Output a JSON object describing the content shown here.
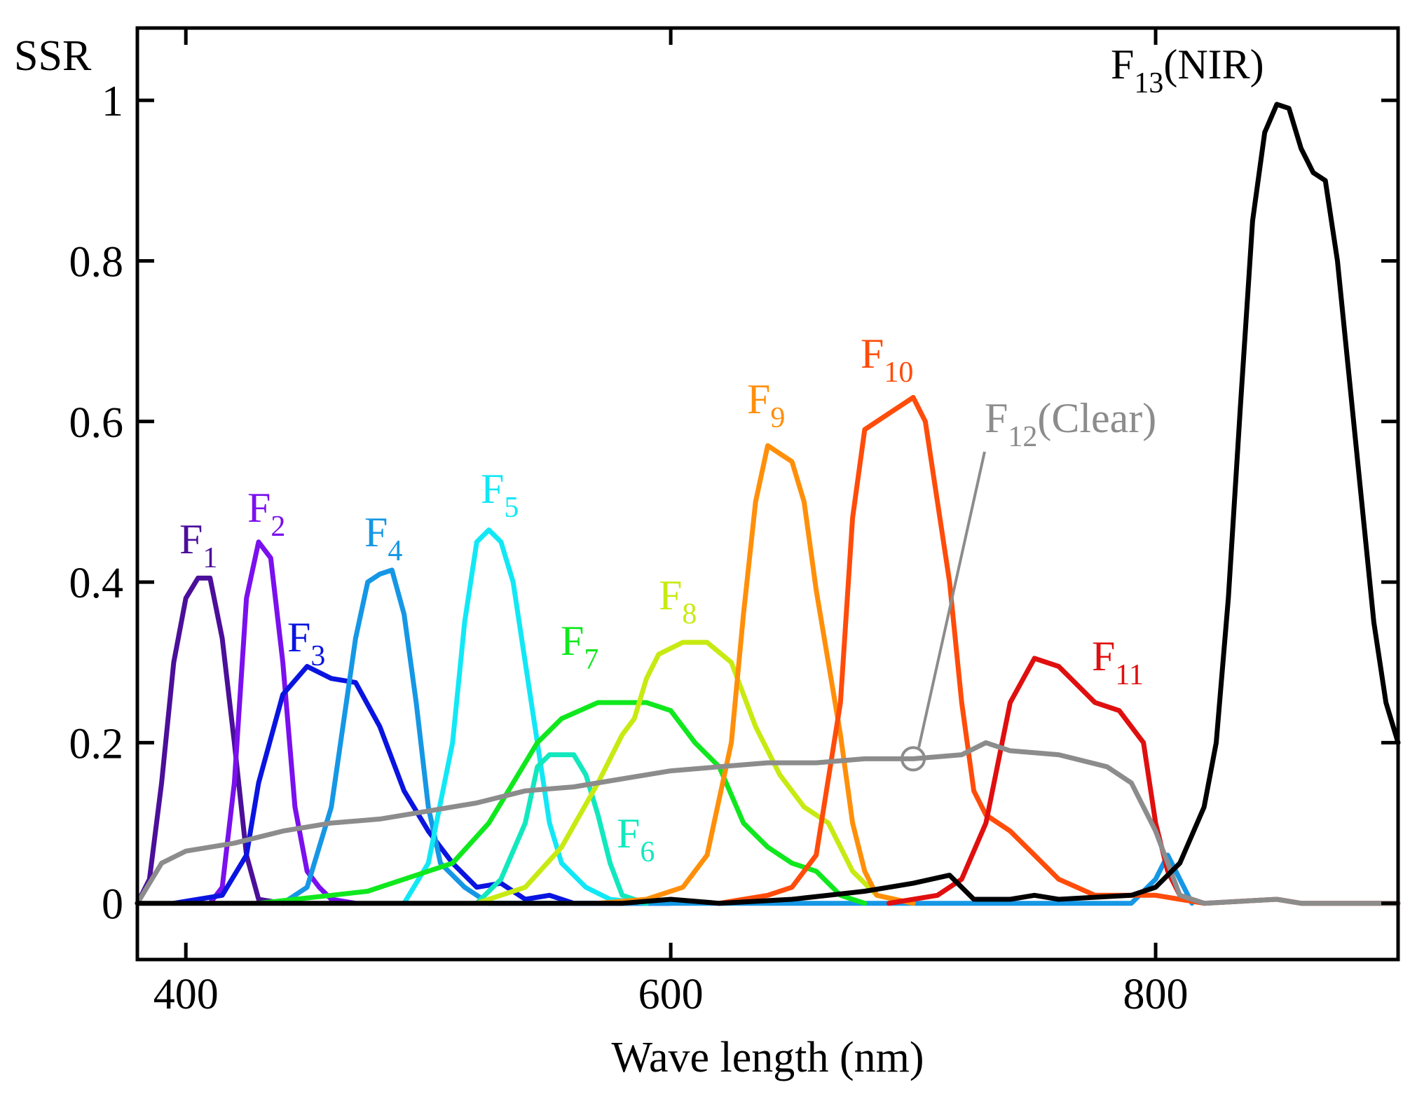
{
  "chart_data": {
    "type": "line",
    "title": "",
    "xlabel": "Wave length (nm)",
    "ylabel": "SSR",
    "xlim": [
      380,
      900
    ],
    "ylim": [
      -0.07,
      1.09
    ],
    "grid": false,
    "xticks": [
      400,
      600,
      800
    ],
    "yticks": [
      0,
      0.2,
      0.4,
      0.6,
      0.8,
      1
    ],
    "x_tick_labels": [
      "400",
      "600",
      "800"
    ],
    "y_tick_labels": [
      "0",
      "0.2",
      "0.4",
      "0.6",
      "0.8",
      "1"
    ],
    "series": [
      {
        "name": "F1",
        "label_main": "F",
        "label_sub": "1",
        "label_suffix": "",
        "color": "#4B0F9A",
        "points": [
          [
            380,
            0
          ],
          [
            385,
            0.03
          ],
          [
            390,
            0.15
          ],
          [
            395,
            0.3
          ],
          [
            400,
            0.38
          ],
          [
            405,
            0.405
          ],
          [
            410,
            0.405
          ],
          [
            415,
            0.33
          ],
          [
            420,
            0.2
          ],
          [
            425,
            0.06
          ],
          [
            430,
            0.005
          ],
          [
            440,
            0
          ]
        ]
      },
      {
        "name": "F2",
        "label_main": "F",
        "label_sub": "2",
        "label_suffix": "",
        "color": "#7A10EE",
        "points": [
          [
            410,
            0
          ],
          [
            415,
            0.02
          ],
          [
            420,
            0.15
          ],
          [
            425,
            0.38
          ],
          [
            430,
            0.45
          ],
          [
            435,
            0.43
          ],
          [
            440,
            0.3
          ],
          [
            445,
            0.12
          ],
          [
            450,
            0.04
          ],
          [
            455,
            0.02
          ],
          [
            460,
            0.005
          ],
          [
            470,
            0
          ]
        ]
      },
      {
        "name": "F3",
        "label_main": "F",
        "label_sub": "3",
        "label_suffix": "",
        "color": "#0A14E0",
        "points": [
          [
            395,
            0
          ],
          [
            415,
            0.01
          ],
          [
            425,
            0.06
          ],
          [
            430,
            0.15
          ],
          [
            440,
            0.26
          ],
          [
            450,
            0.295
          ],
          [
            460,
            0.28
          ],
          [
            470,
            0.275
          ],
          [
            480,
            0.22
          ],
          [
            490,
            0.14
          ],
          [
            500,
            0.09
          ],
          [
            510,
            0.05
          ],
          [
            520,
            0.02
          ],
          [
            530,
            0.025
          ],
          [
            540,
            0.005
          ],
          [
            550,
            0.01
          ],
          [
            560,
            0
          ],
          [
            600,
            0
          ]
        ]
      },
      {
        "name": "F4",
        "label_main": "F",
        "label_sub": "4",
        "label_suffix": "",
        "color": "#1597E5",
        "points": [
          [
            440,
            0
          ],
          [
            450,
            0.02
          ],
          [
            460,
            0.12
          ],
          [
            470,
            0.33
          ],
          [
            475,
            0.4
          ],
          [
            480,
            0.41
          ],
          [
            485,
            0.415
          ],
          [
            490,
            0.36
          ],
          [
            495,
            0.25
          ],
          [
            500,
            0.12
          ],
          [
            505,
            0.05
          ],
          [
            515,
            0.02
          ],
          [
            525,
            0
          ],
          [
            790,
            0
          ],
          [
            800,
            0.03
          ],
          [
            805,
            0.06
          ],
          [
            810,
            0.03
          ],
          [
            815,
            0
          ]
        ]
      },
      {
        "name": "F5",
        "label_main": "F",
        "label_sub": "5",
        "label_suffix": "",
        "color": "#12E8F5",
        "points": [
          [
            490,
            0
          ],
          [
            500,
            0.05
          ],
          [
            510,
            0.2
          ],
          [
            515,
            0.35
          ],
          [
            520,
            0.45
          ],
          [
            525,
            0.465
          ],
          [
            530,
            0.45
          ],
          [
            535,
            0.4
          ],
          [
            540,
            0.3
          ],
          [
            545,
            0.2
          ],
          [
            550,
            0.1
          ],
          [
            555,
            0.05
          ],
          [
            565,
            0.02
          ],
          [
            575,
            0.005
          ],
          [
            590,
            0
          ]
        ]
      },
      {
        "name": "F6",
        "label_main": "F",
        "label_sub": "6",
        "label_suffix": "",
        "color": "#12E8BE",
        "points": [
          [
            520,
            0
          ],
          [
            530,
            0.03
          ],
          [
            540,
            0.1
          ],
          [
            545,
            0.17
          ],
          [
            550,
            0.185
          ],
          [
            560,
            0.185
          ],
          [
            565,
            0.16
          ],
          [
            570,
            0.11
          ],
          [
            575,
            0.05
          ],
          [
            580,
            0.01
          ],
          [
            590,
            0
          ]
        ]
      },
      {
        "name": "F7",
        "label_main": "F",
        "label_sub": "7",
        "label_suffix": "",
        "color": "#10E81E",
        "points": [
          [
            430,
            0
          ],
          [
            460,
            0.01
          ],
          [
            475,
            0.015
          ],
          [
            490,
            0.03
          ],
          [
            510,
            0.05
          ],
          [
            525,
            0.1
          ],
          [
            535,
            0.15
          ],
          [
            545,
            0.2
          ],
          [
            555,
            0.23
          ],
          [
            570,
            0.25
          ],
          [
            590,
            0.25
          ],
          [
            600,
            0.24
          ],
          [
            610,
            0.2
          ],
          [
            620,
            0.17
          ],
          [
            630,
            0.1
          ],
          [
            640,
            0.07
          ],
          [
            650,
            0.05
          ],
          [
            660,
            0.04
          ],
          [
            670,
            0.01
          ],
          [
            680,
            0
          ]
        ]
      },
      {
        "name": "F8",
        "label_main": "F",
        "label_sub": "8",
        "label_suffix": "",
        "color": "#C8EA12",
        "points": [
          [
            520,
            0
          ],
          [
            540,
            0.02
          ],
          [
            555,
            0.07
          ],
          [
            570,
            0.15
          ],
          [
            580,
            0.21
          ],
          [
            585,
            0.23
          ],
          [
            590,
            0.28
          ],
          [
            595,
            0.31
          ],
          [
            605,
            0.325
          ],
          [
            615,
            0.325
          ],
          [
            625,
            0.3
          ],
          [
            635,
            0.22
          ],
          [
            645,
            0.16
          ],
          [
            655,
            0.12
          ],
          [
            665,
            0.1
          ],
          [
            675,
            0.04
          ],
          [
            685,
            0.01
          ],
          [
            700,
            0
          ]
        ]
      },
      {
        "name": "F9",
        "label_main": "F",
        "label_sub": "9",
        "label_suffix": "",
        "color": "#FF8F0A",
        "points": [
          [
            570,
            0
          ],
          [
            590,
            0.005
          ],
          [
            605,
            0.02
          ],
          [
            615,
            0.06
          ],
          [
            625,
            0.2
          ],
          [
            630,
            0.36
          ],
          [
            635,
            0.5
          ],
          [
            640,
            0.57
          ],
          [
            645,
            0.56
          ],
          [
            650,
            0.55
          ],
          [
            655,
            0.5
          ],
          [
            660,
            0.39
          ],
          [
            665,
            0.3
          ],
          [
            670,
            0.21
          ],
          [
            675,
            0.1
          ],
          [
            680,
            0.04
          ],
          [
            685,
            0.01
          ],
          [
            700,
            0
          ]
        ]
      },
      {
        "name": "F10",
        "label_main": "F",
        "label_sub": "10",
        "label_suffix": "",
        "color": "#FF4C0A",
        "points": [
          [
            620,
            0
          ],
          [
            640,
            0.01
          ],
          [
            650,
            0.02
          ],
          [
            660,
            0.06
          ],
          [
            670,
            0.25
          ],
          [
            675,
            0.48
          ],
          [
            680,
            0.59
          ],
          [
            690,
            0.61
          ],
          [
            700,
            0.63
          ],
          [
            705,
            0.6
          ],
          [
            710,
            0.5
          ],
          [
            715,
            0.4
          ],
          [
            720,
            0.25
          ],
          [
            725,
            0.14
          ],
          [
            730,
            0.11
          ],
          [
            740,
            0.09
          ],
          [
            750,
            0.06
          ],
          [
            760,
            0.03
          ],
          [
            775,
            0.01
          ],
          [
            800,
            0.01
          ],
          [
            810,
            0.005
          ],
          [
            820,
            0
          ]
        ]
      },
      {
        "name": "F11",
        "label_main": "F",
        "label_sub": "11",
        "label_suffix": "",
        "color": "#E00F0F",
        "points": [
          [
            690,
            0
          ],
          [
            710,
            0.01
          ],
          [
            720,
            0.03
          ],
          [
            730,
            0.1
          ],
          [
            740,
            0.25
          ],
          [
            750,
            0.305
          ],
          [
            760,
            0.295
          ],
          [
            765,
            0.28
          ],
          [
            775,
            0.25
          ],
          [
            785,
            0.24
          ],
          [
            795,
            0.2
          ],
          [
            800,
            0.1
          ],
          [
            805,
            0.04
          ],
          [
            810,
            0.01
          ],
          [
            820,
            0
          ],
          [
            850,
            0.005
          ],
          [
            860,
            0
          ],
          [
            900,
            0
          ]
        ]
      },
      {
        "name": "F12(Clear)",
        "label_main": "F",
        "label_sub": "12",
        "label_suffix": "(Clear)",
        "color": "#8C8C8C",
        "points": [
          [
            380,
            0
          ],
          [
            390,
            0.05
          ],
          [
            400,
            0.065
          ],
          [
            420,
            0.075
          ],
          [
            440,
            0.09
          ],
          [
            460,
            0.1
          ],
          [
            480,
            0.105
          ],
          [
            500,
            0.115
          ],
          [
            520,
            0.125
          ],
          [
            540,
            0.14
          ],
          [
            560,
            0.145
          ],
          [
            580,
            0.155
          ],
          [
            600,
            0.165
          ],
          [
            620,
            0.17
          ],
          [
            640,
            0.175
          ],
          [
            660,
            0.175
          ],
          [
            680,
            0.18
          ],
          [
            700,
            0.18
          ],
          [
            720,
            0.185
          ],
          [
            730,
            0.2
          ],
          [
            740,
            0.19
          ],
          [
            760,
            0.185
          ],
          [
            780,
            0.17
          ],
          [
            790,
            0.15
          ],
          [
            800,
            0.09
          ],
          [
            805,
            0.05
          ],
          [
            810,
            0.01
          ],
          [
            820,
            0
          ],
          [
            850,
            0.005
          ],
          [
            860,
            0
          ],
          [
            900,
            0
          ]
        ]
      },
      {
        "name": "F13(NIR)",
        "label_main": "F",
        "label_sub": "13",
        "label_suffix": "(NIR)",
        "color": "#000000",
        "points": [
          [
            380,
            0
          ],
          [
            500,
            0
          ],
          [
            580,
            0
          ],
          [
            600,
            0.005
          ],
          [
            620,
            0
          ],
          [
            650,
            0.005
          ],
          [
            680,
            0.015
          ],
          [
            700,
            0.025
          ],
          [
            715,
            0.035
          ],
          [
            725,
            0.005
          ],
          [
            740,
            0.005
          ],
          [
            750,
            0.01
          ],
          [
            760,
            0.005
          ],
          [
            790,
            0.01
          ],
          [
            800,
            0.02
          ],
          [
            810,
            0.05
          ],
          [
            820,
            0.12
          ],
          [
            825,
            0.2
          ],
          [
            830,
            0.38
          ],
          [
            835,
            0.62
          ],
          [
            840,
            0.85
          ],
          [
            845,
            0.96
          ],
          [
            850,
            0.995
          ],
          [
            855,
            0.99
          ],
          [
            860,
            0.94
          ],
          [
            865,
            0.91
          ],
          [
            870,
            0.9
          ],
          [
            875,
            0.8
          ],
          [
            880,
            0.65
          ],
          [
            885,
            0.5
          ],
          [
            890,
            0.35
          ],
          [
            895,
            0.25
          ],
          [
            900,
            0.2
          ]
        ]
      }
    ]
  }
}
